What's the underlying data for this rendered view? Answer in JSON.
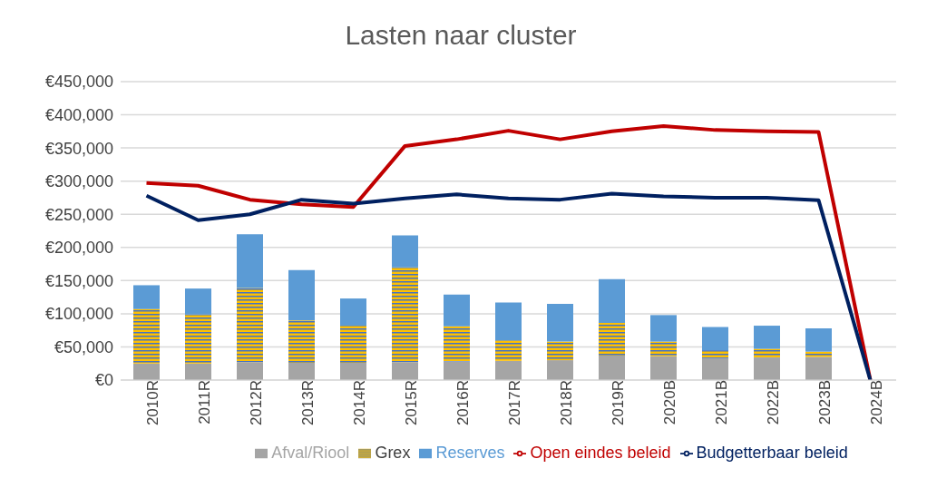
{
  "chart_data": {
    "type": "bar",
    "title": "Lasten naar cluster",
    "stacked": true,
    "grid": "y",
    "legend": "bottom",
    "categories": [
      "2010R",
      "2011R",
      "2012R",
      "2013R",
      "2014R",
      "2015R",
      "2016R",
      "2017R",
      "2018R",
      "2019R",
      "2020B",
      "2021B",
      "2022B",
      "2023B",
      "2024B"
    ],
    "ylim": [
      0,
      450000
    ],
    "yticks": [
      {
        "value": 0,
        "label": "€0"
      },
      {
        "value": 50000,
        "label": "€50,000"
      },
      {
        "value": 100000,
        "label": "€100,000"
      },
      {
        "value": 150000,
        "label": "€150,000"
      },
      {
        "value": 200000,
        "label": "€200,000"
      },
      {
        "value": 250000,
        "label": "€250,000"
      },
      {
        "value": 300000,
        "label": "€300,000"
      },
      {
        "value": 350000,
        "label": "€350,000"
      },
      {
        "value": 400000,
        "label": "€400,000"
      },
      {
        "value": 450000,
        "label": "€450,000"
      }
    ],
    "series": [
      {
        "name": "Afval/Riool",
        "color": "#a5a5a5",
        "values": [
          25000,
          25000,
          27000,
          26000,
          26000,
          27000,
          28000,
          29000,
          30000,
          37000,
          36000,
          33000,
          34000,
          35000,
          0
        ]
      },
      {
        "name": "Grex",
        "color": "#ffc000",
        "values": [
          82000,
          74000,
          112000,
          64000,
          56000,
          143000,
          53000,
          31000,
          28000,
          49000,
          22000,
          12000,
          13000,
          8000,
          0
        ]
      },
      {
        "name": "Reserves",
        "color": "#5b9bd5",
        "values": [
          36000,
          39000,
          81000,
          76000,
          41000,
          48000,
          48000,
          57000,
          57000,
          66000,
          40000,
          35000,
          35000,
          35000,
          0
        ]
      },
      {
        "name": "Open eindes beleid",
        "type": "line",
        "color": "#c00000",
        "values": [
          297000,
          293000,
          272000,
          265000,
          261000,
          353000,
          363000,
          376000,
          363000,
          375000,
          383000,
          377000,
          375000,
          374000,
          0
        ]
      },
      {
        "name": "Budgetterbaar beleid",
        "type": "line",
        "color": "#002060",
        "values": [
          278000,
          241000,
          250000,
          272000,
          266000,
          274000,
          280000,
          274000,
          272000,
          281000,
          277000,
          275000,
          275000,
          271000,
          0
        ]
      }
    ]
  }
}
